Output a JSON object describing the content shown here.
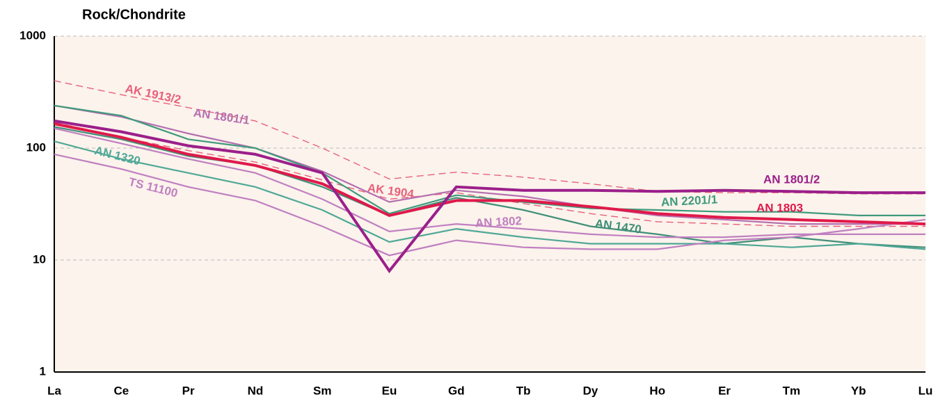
{
  "chart_data": {
    "type": "line",
    "title": "Rock/Chondrite",
    "categories": [
      "La",
      "Ce",
      "Pr",
      "Nd",
      "Sm",
      "Eu",
      "Gd",
      "Tb",
      "Dy",
      "Ho",
      "Er",
      "Tm",
      "Yb",
      "Lu"
    ],
    "ylim": [
      1,
      1000
    ],
    "yticks": [
      1,
      10,
      100,
      1000
    ],
    "log_scale": true,
    "grid": true,
    "series": [
      {
        "name": "AK 1913/2",
        "color": "#e8607a",
        "dashed": true,
        "values": [
          400,
          300,
          230,
          175,
          100,
          53,
          61,
          55,
          48,
          41,
          40,
          40,
          39,
          39
        ]
      },
      {
        "name": "AK 1904",
        "color": "#e8607a",
        "dashed": true,
        "values": [
          170,
          125,
          95,
          75,
          52,
          35,
          40,
          32,
          26,
          22,
          21,
          20,
          20,
          20
        ]
      },
      {
        "name": "AN 1801/1",
        "color": "#b56fb0",
        "values": [
          240,
          190,
          135,
          100,
          62,
          33,
          42,
          37,
          30,
          25,
          23,
          21,
          21,
          21
        ]
      },
      {
        "name": "AN 2201/1",
        "color": "#3f9a7c",
        "values": [
          240,
          195,
          120,
          100,
          60,
          26,
          38,
          33,
          29,
          28,
          27,
          27,
          25,
          25
        ]
      },
      {
        "name": "AN 1470",
        "color": "#3f8f78",
        "values": [
          155,
          120,
          85,
          70,
          45,
          25,
          36,
          28,
          20,
          17,
          14,
          16,
          14,
          13
        ]
      },
      {
        "name": "AN 1320",
        "color": "#4fa896",
        "values": [
          115,
          80,
          60,
          45,
          28,
          14.5,
          19,
          16,
          14,
          14,
          14,
          13,
          14,
          12.5
        ]
      },
      {
        "name": "AN 1802",
        "color": "#c07fc0",
        "values": [
          150,
          110,
          80,
          60,
          35,
          18,
          21,
          19,
          17,
          16,
          16,
          17,
          17,
          17
        ]
      },
      {
        "name": "TS 11100",
        "color": "#c07fc0",
        "values": [
          88,
          65,
          45,
          34,
          20,
          11,
          15,
          13,
          12.5,
          12.5,
          15,
          16,
          19,
          23
        ]
      },
      {
        "name": "AN 1803",
        "color": "#e0194a",
        "thick": true,
        "values": [
          165,
          125,
          88,
          70,
          48,
          25,
          34,
          34,
          30,
          26,
          24,
          23,
          22,
          21
        ]
      },
      {
        "name": "AN 1801/2",
        "color": "#9b1f8a",
        "thick": true,
        "values": [
          175,
          140,
          105,
          88,
          60,
          8,
          45,
          42,
          42,
          41,
          42,
          41,
          40,
          40
        ]
      }
    ]
  }
}
